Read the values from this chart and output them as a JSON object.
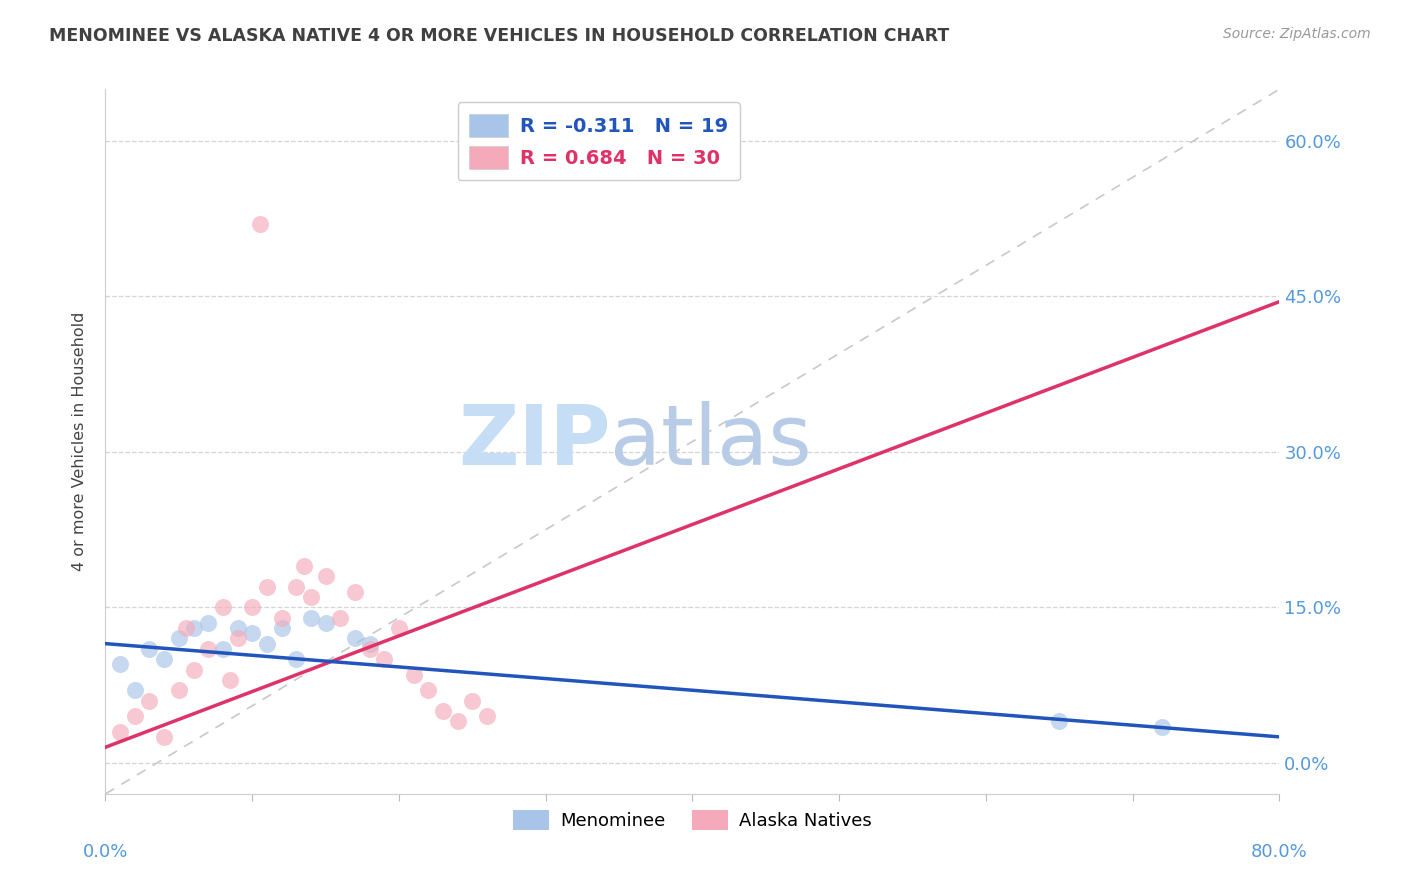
{
  "title": "MENOMINEE VS ALASKA NATIVE 4 OR MORE VEHICLES IN HOUSEHOLD CORRELATION CHART",
  "source": "Source: ZipAtlas.com",
  "ylabel": "4 or more Vehicles in Household",
  "ytick_values": [
    0.0,
    15.0,
    30.0,
    45.0,
    60.0
  ],
  "xlim": [
    0.0,
    80.0
  ],
  "ylim": [
    -3.0,
    65.0
  ],
  "legend_entry1": "R = -0.311   N = 19",
  "legend_entry2": "R = 0.684   N = 30",
  "legend_label1": "Menominee",
  "legend_label2": "Alaska Natives",
  "menominee_color": "#a8c4e8",
  "alaska_color": "#f4aabb",
  "menominee_line_color": "#2255bb",
  "alaska_line_color": "#dd3366",
  "diagonal_line_color": "#c8c8c8",
  "background_color": "#ffffff",
  "grid_color": "#d5d5d5",
  "title_color": "#404040",
  "tick_color": "#5599dd",
  "watermark_zip_color": "#c5ddf5",
  "watermark_atlas_color": "#b8cce8",
  "menominee_x": [
    1.0,
    2.0,
    3.0,
    4.0,
    5.0,
    6.0,
    7.0,
    8.0,
    9.0,
    10.0,
    11.0,
    12.0,
    13.0,
    14.0,
    15.0,
    17.0,
    18.0,
    65.0,
    72.0
  ],
  "menominee_y": [
    9.5,
    7.0,
    11.0,
    10.0,
    12.0,
    13.0,
    13.5,
    11.0,
    13.0,
    12.5,
    11.5,
    13.0,
    10.0,
    14.0,
    13.5,
    12.0,
    11.5,
    4.0,
    3.5
  ],
  "alaska_x": [
    1.0,
    2.0,
    3.0,
    4.0,
    5.0,
    5.5,
    6.0,
    7.0,
    8.0,
    8.5,
    9.0,
    10.0,
    11.0,
    12.0,
    13.0,
    13.5,
    14.0,
    15.0,
    16.0,
    17.0,
    18.0,
    19.0,
    20.0,
    21.0,
    22.0,
    23.0,
    24.0,
    25.0,
    26.0,
    10.5
  ],
  "alaska_y": [
    3.0,
    4.5,
    6.0,
    2.5,
    7.0,
    13.0,
    9.0,
    11.0,
    15.0,
    8.0,
    12.0,
    15.0,
    17.0,
    14.0,
    17.0,
    19.0,
    16.0,
    18.0,
    14.0,
    16.5,
    11.0,
    10.0,
    13.0,
    8.5,
    7.0,
    5.0,
    4.0,
    6.0,
    4.5,
    52.0
  ],
  "alaska_line_x0": 0.0,
  "alaska_line_y0": 1.5,
  "alaska_line_x1": 80.0,
  "alaska_line_y1": 44.5,
  "menominee_line_x0": 0.0,
  "menominee_line_y0": 11.5,
  "menominee_line_x1": 80.0,
  "menominee_line_y1": 2.5
}
